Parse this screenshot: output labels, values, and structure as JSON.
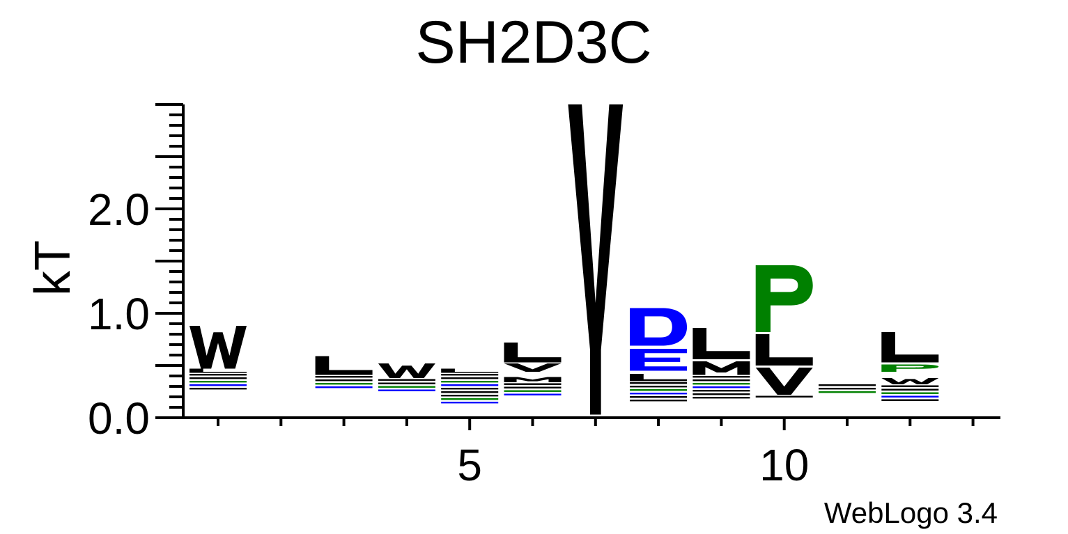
{
  "chart_data": {
    "type": "sequence-logo",
    "title": "SH2D3C",
    "ylabel": "kT",
    "xlabel": "",
    "ylim": [
      0,
      3
    ],
    "yticks": [
      {
        "value": 0,
        "label": "0.0"
      },
      {
        "value": 1,
        "label": "1.0"
      },
      {
        "value": 2,
        "label": "2.0"
      }
    ],
    "xticks": [
      {
        "position": 5,
        "label": "5"
      },
      {
        "position": 10,
        "label": "10"
      }
    ],
    "positions": 13,
    "footer": "WebLogo 3.4",
    "colors": {
      "hydrophobic": "#000000",
      "acidic": "#0000ff",
      "polar": "#008000"
    },
    "columns": [
      {
        "pos": 1,
        "letters": [
          {
            "aa": "W",
            "lo": 0.47,
            "hi": 0.88
          },
          {
            "aa": "L",
            "lo": 0.43,
            "hi": 0.47
          }
        ],
        "noise": [
          0.27,
          0.43
        ]
      },
      {
        "pos": 2,
        "letters": [],
        "noise": [
          0.24,
          0.25
        ]
      },
      {
        "pos": 3,
        "letters": [
          {
            "aa": "L",
            "lo": 0.41,
            "hi": 0.59
          }
        ],
        "noise": [
          0.27,
          0.41
        ]
      },
      {
        "pos": 4,
        "letters": [
          {
            "aa": "W",
            "lo": 0.38,
            "hi": 0.52
          }
        ],
        "noise": [
          0.26,
          0.38
        ]
      },
      {
        "pos": 5,
        "letters": [
          {
            "aa": "L",
            "lo": 0.43,
            "hi": 0.47
          }
        ],
        "noise": [
          0.14,
          0.43
        ]
      },
      {
        "pos": 6,
        "letters": [
          {
            "aa": "L",
            "lo": 0.53,
            "hi": 0.72
          },
          {
            "aa": "V",
            "lo": 0.44,
            "hi": 0.52
          },
          {
            "aa": "M",
            "lo": 0.34,
            "hi": 0.39
          }
        ],
        "noise": [
          0.2,
          0.34
        ]
      },
      {
        "pos": 7,
        "letters": [
          {
            "aa": "Y",
            "lo": 0.03,
            "hi": 3.0
          }
        ],
        "noise": [
          0,
          0
        ]
      },
      {
        "pos": 8,
        "letters": [
          {
            "aa": "D",
            "lo": 0.69,
            "hi": 1.05
          },
          {
            "aa": "E",
            "lo": 0.45,
            "hi": 0.66
          },
          {
            "aa": "L",
            "lo": 0.35,
            "hi": 0.42
          }
        ],
        "noise": [
          0.17,
          0.35
        ]
      },
      {
        "pos": 9,
        "letters": [
          {
            "aa": "L",
            "lo": 0.56,
            "hi": 0.86
          },
          {
            "aa": "M",
            "lo": 0.41,
            "hi": 0.54
          }
        ],
        "noise": [
          0.19,
          0.41
        ]
      },
      {
        "pos": 10,
        "letters": [
          {
            "aa": "P",
            "lo": 0.82,
            "hi": 1.46
          },
          {
            "aa": "L",
            "lo": 0.5,
            "hi": 0.8
          },
          {
            "aa": "V",
            "lo": 0.22,
            "hi": 0.48
          }
        ],
        "noise": [
          0.18,
          0.22
        ]
      },
      {
        "pos": 11,
        "letters": [],
        "noise": [
          0.23,
          0.33
        ]
      },
      {
        "pos": 12,
        "letters": [
          {
            "aa": "L",
            "lo": 0.53,
            "hi": 0.82
          },
          {
            "aa": "P",
            "lo": 0.44,
            "hi": 0.51
          },
          {
            "aa": "W",
            "lo": 0.32,
            "hi": 0.38
          }
        ],
        "noise": [
          0.15,
          0.32
        ]
      },
      {
        "pos": 13,
        "letters": [],
        "noise": [
          0.25,
          0.26
        ]
      }
    ]
  }
}
